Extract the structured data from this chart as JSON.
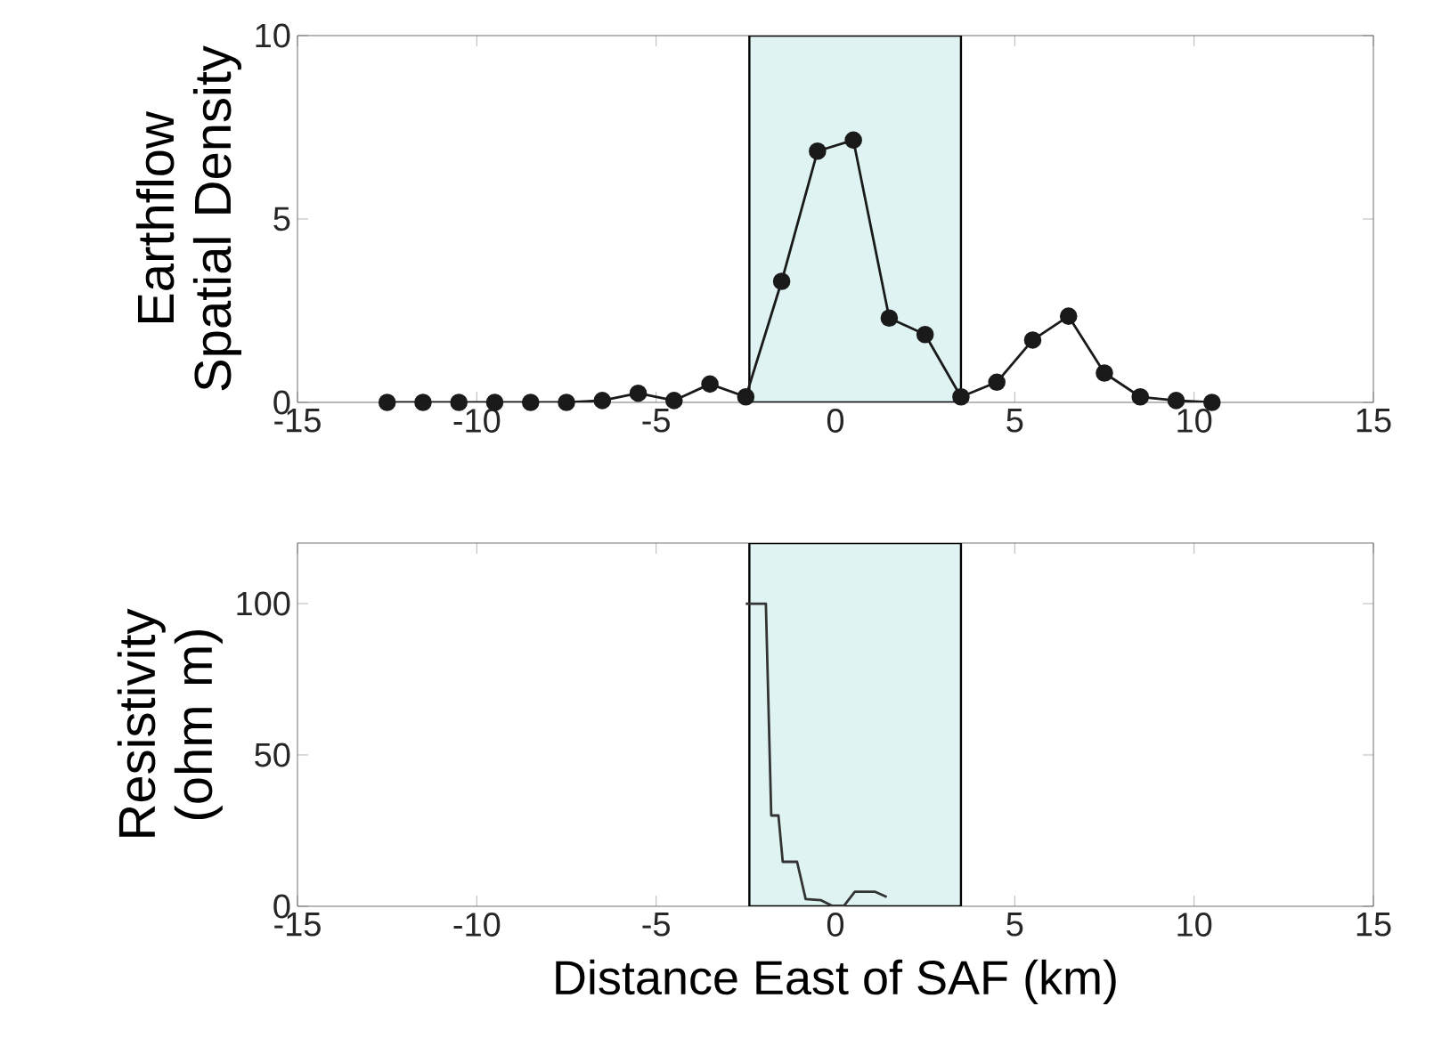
{
  "chart_data": [
    {
      "type": "line",
      "ylabel": "Earthflow Spatial Density",
      "x": [
        -12.5,
        -11.5,
        -10.5,
        -9.5,
        -8.5,
        -7.5,
        -6.5,
        -5.5,
        -4.5,
        -3.5,
        -2.5,
        -1.5,
        -0.5,
        0.5,
        1.5,
        2.5,
        3.5,
        4.5,
        5.5,
        6.5,
        7.5,
        8.5,
        9.5,
        10.5
      ],
      "series": [
        {
          "color": "#1a1a1a",
          "values": [
            0,
            0,
            0,
            0,
            0,
            0,
            0.05,
            0.25,
            0.05,
            0.5,
            0.15,
            3.3,
            6.85,
            7.15,
            2.3,
            1.85,
            0.15,
            0.55,
            1.7,
            2.35,
            0.8,
            0.15,
            0.05,
            0
          ]
        }
      ],
      "xlim": [
        -15,
        15
      ],
      "xticks": [
        -15,
        -10,
        -5,
        0,
        5,
        10,
        15
      ],
      "ylim": [
        0,
        10
      ],
      "yticks": [
        0,
        5,
        10
      ],
      "marker": "circle",
      "grid": false,
      "bands": [
        {
          "axis": "x",
          "from": -2.4,
          "to": 3.5,
          "color": "#dff3f3"
        }
      ]
    },
    {
      "type": "line",
      "xlabel": "Distance East of SAF (km)",
      "ylabel": "Resistivity (ohm m)",
      "x": [
        -2.5,
        -1.94,
        -1.79,
        -1.59,
        -1.47,
        -1.07,
        -0.83,
        -0.4,
        -0.1,
        0.24,
        0.54,
        1.11,
        1.43
      ],
      "series": [
        {
          "color": "#333333",
          "values": [
            100,
            100,
            30,
            30,
            14.7,
            14.7,
            2.4,
            2,
            0.2,
            0.2,
            4.8,
            4.8,
            3.1
          ]
        }
      ],
      "xlim": [
        -15,
        15
      ],
      "xticks": [
        -15,
        -10,
        -5,
        0,
        5,
        10,
        15
      ],
      "ylim": [
        0,
        120
      ],
      "yticks": [
        0,
        50,
        100
      ],
      "marker": "none",
      "grid": false,
      "bands": [
        {
          "axis": "x",
          "from": -2.4,
          "to": 3.5,
          "color": "#dff3f3"
        }
      ]
    }
  ]
}
